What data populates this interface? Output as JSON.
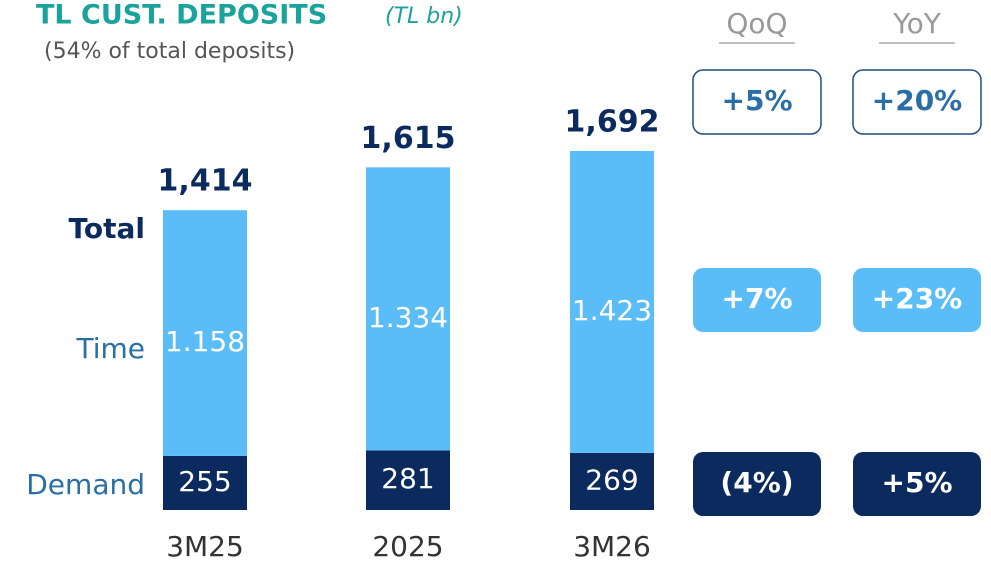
{
  "chart_data": {
    "type": "bar",
    "stacked": true,
    "title": "TL CUST. DEPOSITS",
    "title_unit": "(TL bn)",
    "subtitle": "(54% of total deposits)",
    "categories": [
      "3M25",
      "2025",
      "3M26"
    ],
    "series": [
      {
        "name": "Demand",
        "color": "#0b2a5e",
        "values": [
          255,
          281,
          269
        ]
      },
      {
        "name": "Time",
        "color": "#5bbdf8",
        "values": [
          1158,
          1334,
          1423
        ],
        "value_labels": [
          "1.158",
          "1.334",
          "1.423"
        ]
      }
    ],
    "total_label": "Total",
    "totals": {
      "values": [
        1414,
        1615,
        1692
      ],
      "value_labels": [
        "1,414",
        "1,615",
        "1,692"
      ]
    },
    "growth": {
      "columns": [
        "QoQ",
        "YoY"
      ],
      "rows": [
        [
          "+5%",
          "+20%"
        ],
        [
          "+7%",
          "+23%"
        ],
        [
          "(4%)",
          "+5%"
        ]
      ]
    }
  }
}
